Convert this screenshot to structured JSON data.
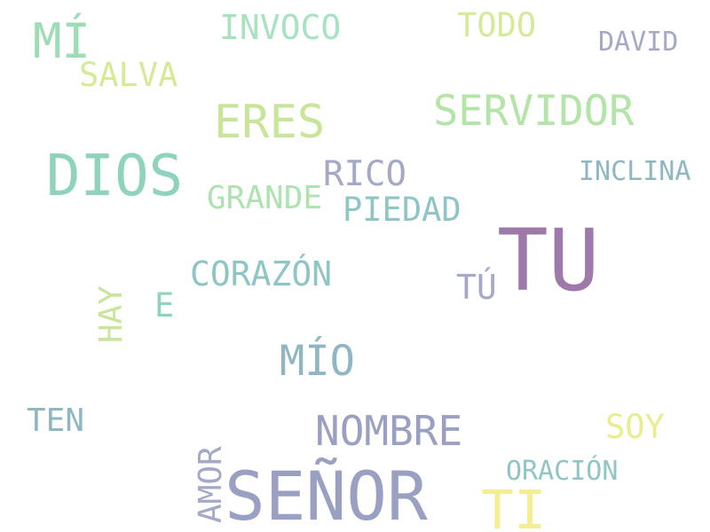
{
  "words": [
    {
      "text": "TU",
      "color": "#9e7aaa"
    },
    {
      "text": "SEÑOR",
      "color": "#9aa0c2"
    },
    {
      "text": "DIOS",
      "color": "#8fd3bf"
    },
    {
      "text": "ERES",
      "color": "#c8e59a"
    },
    {
      "text": "SERVIDOR",
      "color": "#b5e4a8"
    },
    {
      "text": "TI",
      "color": "#f3ee93"
    },
    {
      "text": "NOMBRE",
      "color": "#9aa0c2"
    },
    {
      "text": "MÍO",
      "color": "#8fb7c3"
    },
    {
      "text": "MÍ",
      "color": "#9edcb6"
    },
    {
      "text": "CORAZÓN",
      "color": "#8fc5c5"
    },
    {
      "text": "INVOCO",
      "color": "#a8e2c0"
    },
    {
      "text": "TODO",
      "color": "#d4ea96"
    },
    {
      "text": "SALVA",
      "color": "#d4ea96"
    },
    {
      "text": "RICO",
      "color": "#a3a9c6"
    },
    {
      "text": "PIEDAD",
      "color": "#8fc5c5"
    },
    {
      "text": "GRANDE",
      "color": "#aee3b0"
    },
    {
      "text": "DAVID",
      "color": "#a3a9c6"
    },
    {
      "text": "INCLINA",
      "color": "#8fb7c3"
    },
    {
      "text": "TÚ",
      "color": "#a3a9c6"
    },
    {
      "text": "HAY",
      "color": "#c8e59a"
    },
    {
      "text": "E",
      "color": "#8fd3bf"
    },
    {
      "text": "TEN",
      "color": "#8fb7c3"
    },
    {
      "text": "SOY",
      "color": "#e8ed8f"
    },
    {
      "text": "AMOR",
      "color": "#a3a9c6"
    },
    {
      "text": "ORACIÓN",
      "color": "#8fc5c5"
    }
  ]
}
